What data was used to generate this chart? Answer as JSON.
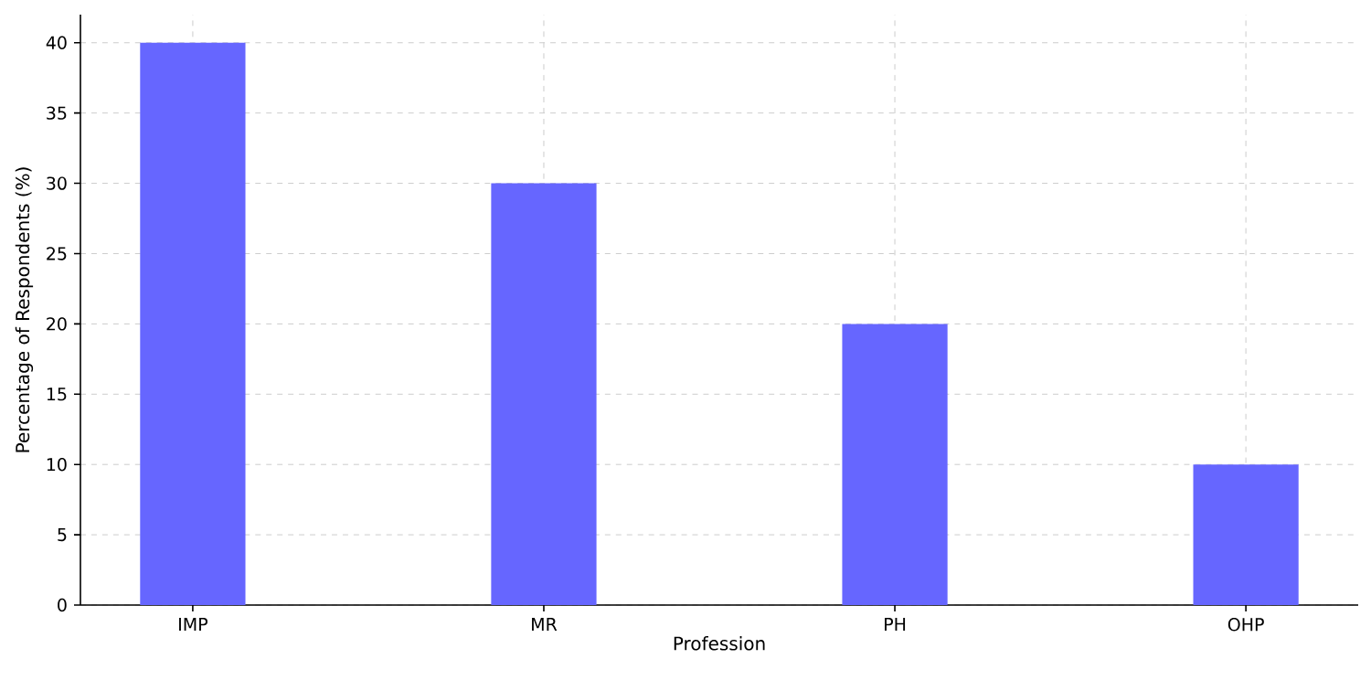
{
  "chart_data": {
    "type": "bar",
    "xlabel": "Profession",
    "ylabel": "Percentage of Respondents (%)",
    "categories": [
      "IMP",
      "MR",
      "PH",
      "OHP"
    ],
    "values": [
      40,
      30,
      20,
      10
    ],
    "color": "#6666ff",
    "ylim": [
      0,
      42
    ],
    "yticks": [
      0,
      5,
      10,
      15,
      20,
      25,
      30,
      35,
      40
    ],
    "grid": true
  }
}
